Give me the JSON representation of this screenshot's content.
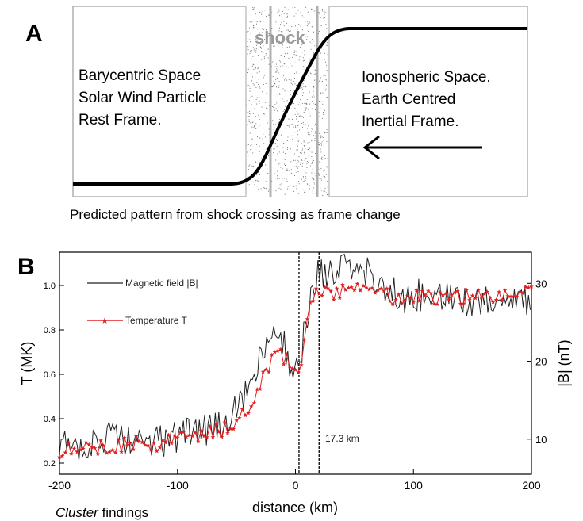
{
  "panel_a": {
    "letter": "A",
    "shock_label": "shock",
    "left_text": [
      "Barycentric Space",
      "Solar Wind Particle",
      "Rest Frame."
    ],
    "right_text": [
      "Ionospheric Space.",
      "Earth Centred",
      "Inertial Frame."
    ],
    "caption": "Predicted pattern from shock crossing as frame change",
    "arrow_icon": "left-arrow-icon"
  },
  "panel_b": {
    "letter": "B",
    "footer_italic": "Cluster",
    "footer_rest": " findings"
  },
  "chart_data": {
    "type": "line",
    "xlabel": "distance (km)",
    "ylabel_left": "T (MK)",
    "ylabel_right": "|B| (nT)",
    "xlim": [
      -200,
      200
    ],
    "ylim_left": [
      0.15,
      1.15
    ],
    "ylim_right": [
      5.5,
      34
    ],
    "x_ticks": [
      -200,
      -100,
      0,
      100,
      200
    ],
    "x_tick_labels": [
      "-200",
      "-100",
      "0",
      "100",
      "200"
    ],
    "y_ticks_left": [
      0.2,
      0.4,
      0.6,
      0.8,
      1.0
    ],
    "y_tick_labels_left": [
      "0.2",
      "0.4",
      "0.6",
      "0.8",
      "1.0"
    ],
    "y_ticks_right": [
      10,
      20,
      30
    ],
    "y_tick_labels_right": [
      "10",
      "20",
      "30"
    ],
    "annotation": "17.3 km",
    "markers_km": [
      3,
      20
    ],
    "colors": {
      "magnetic": "#222222",
      "temperature": "#e02020"
    },
    "series": [
      {
        "name": "Magnetic field |B|",
        "axis": "right",
        "x": [
          -200,
          -180,
          -160,
          -140,
          -120,
          -100,
          -80,
          -60,
          -40,
          -30,
          -20,
          -15,
          -10,
          -5,
          0,
          3,
          6,
          10,
          14,
          18,
          22,
          26,
          30,
          40,
          50,
          60,
          70,
          80,
          90,
          100,
          120,
          140,
          160,
          180,
          200
        ],
        "values": [
          9,
          9.5,
          10,
          10,
          9.5,
          10.5,
          11,
          12,
          16,
          20,
          23,
          24.5,
          22,
          20,
          19,
          17,
          22,
          26,
          29,
          31,
          32,
          31,
          31,
          32,
          32,
          31.5,
          30,
          29,
          28,
          28.5,
          28,
          28,
          27.5,
          28,
          28
        ]
      },
      {
        "name": "Temperature T",
        "axis": "left",
        "x": [
          -200,
          -180,
          -160,
          -140,
          -120,
          -100,
          -80,
          -60,
          -40,
          -30,
          -20,
          -15,
          -10,
          -5,
          0,
          3,
          6,
          10,
          14,
          18,
          22,
          26,
          30,
          40,
          50,
          60,
          70,
          80,
          90,
          100,
          120,
          140,
          160,
          180,
          200
        ],
        "values": [
          0.26,
          0.28,
          0.27,
          0.29,
          0.28,
          0.31,
          0.33,
          0.35,
          0.45,
          0.55,
          0.66,
          0.7,
          0.68,
          0.65,
          0.6,
          0.58,
          0.7,
          0.85,
          0.95,
          0.98,
          0.98,
          0.97,
          0.96,
          0.97,
          1.0,
          1.02,
          0.98,
          0.95,
          0.94,
          0.95,
          0.94,
          0.95,
          0.96,
          0.95,
          0.97
        ]
      }
    ]
  }
}
